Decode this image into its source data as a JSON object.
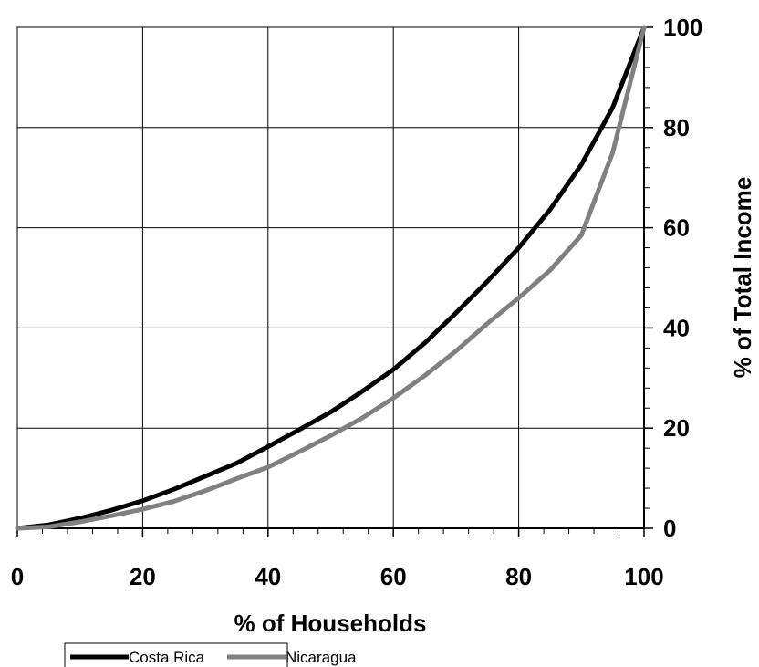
{
  "chart_data": {
    "type": "line",
    "title": "",
    "xlabel": "% of Households",
    "ylabel": "% of Total Income",
    "xlim": [
      0,
      100
    ],
    "ylim": [
      0,
      100
    ],
    "x_ticks": [
      "0",
      "20",
      "40",
      "60",
      "80",
      "100"
    ],
    "y_ticks": [
      "0",
      "20",
      "40",
      "60",
      "80",
      "100"
    ],
    "grid": true,
    "y_axis_side": "right",
    "legend_position": "bottom",
    "series": [
      {
        "name": "Costa Rica",
        "color": "#000000",
        "x": [
          0,
          5,
          10,
          15,
          20,
          25,
          30,
          35,
          40,
          45,
          50,
          55,
          60,
          65,
          70,
          75,
          80,
          85,
          90,
          95,
          100
        ],
        "y": [
          0,
          0.7,
          2,
          3.6,
          5.5,
          7.8,
          10.4,
          13,
          16.3,
          19.7,
          23.2,
          27.3,
          31.7,
          37,
          43,
          49.3,
          56,
          63.6,
          72.6,
          84,
          100
        ]
      },
      {
        "name": "Nicaragua",
        "color": "#808080",
        "x": [
          0,
          5,
          10,
          15,
          20,
          25,
          30,
          35,
          40,
          45,
          50,
          55,
          60,
          65,
          70,
          75,
          80,
          85,
          90,
          95,
          100
        ],
        "y": [
          0,
          0.3,
          1.3,
          2.5,
          3.8,
          5.4,
          7.5,
          9.9,
          12.2,
          15.3,
          18.5,
          22,
          26,
          30.5,
          35.4,
          40.9,
          46,
          51.5,
          58.5,
          75,
          100
        ]
      }
    ]
  }
}
